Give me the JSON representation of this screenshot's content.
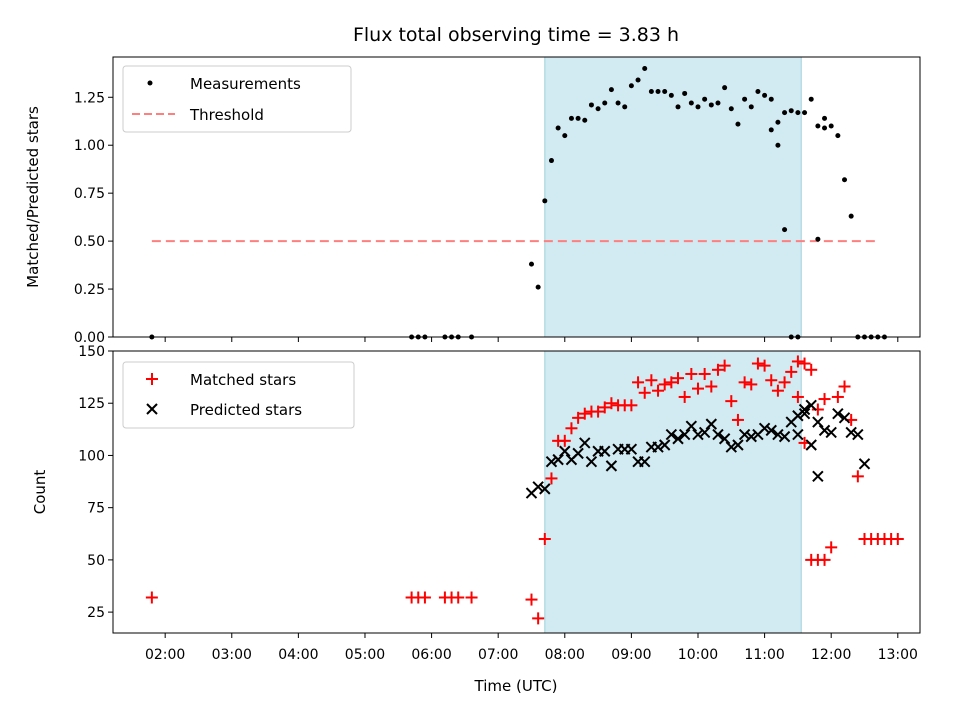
{
  "chart_data": [
    {
      "type": "scatter",
      "title": "Flux total observing time = 3.83 h",
      "xlabel": "",
      "ylabel": "Matched/Predicted stars",
      "ylim": [
        0,
        1.46
      ],
      "xlim": [
        "01:13",
        "13:20"
      ],
      "yticks": [
        "0.00",
        "0.25",
        "0.50",
        "0.75",
        "1.00",
        "1.25"
      ],
      "legend_position": "top-left",
      "shaded_interval": [
        "07:42",
        "11:33"
      ],
      "series": [
        {
          "name": "Measurements",
          "marker": "dot",
          "color": "#000000",
          "points": [
            [
              "01:48",
              0.0
            ],
            [
              "05:42",
              0.0
            ],
            [
              "05:48",
              0.0
            ],
            [
              "05:54",
              0.0
            ],
            [
              "06:12",
              0.0
            ],
            [
              "06:18",
              0.0
            ],
            [
              "06:24",
              0.0
            ],
            [
              "06:36",
              0.0
            ],
            [
              "07:30",
              0.38
            ],
            [
              "07:36",
              0.26
            ],
            [
              "07:42",
              0.71
            ],
            [
              "07:48",
              0.92
            ],
            [
              "07:54",
              1.09
            ],
            [
              "08:00",
              1.05
            ],
            [
              "08:06",
              1.14
            ],
            [
              "08:12",
              1.14
            ],
            [
              "08:18",
              1.13
            ],
            [
              "08:24",
              1.21
            ],
            [
              "08:30",
              1.19
            ],
            [
              "08:36",
              1.22
            ],
            [
              "08:42",
              1.29
            ],
            [
              "08:48",
              1.22
            ],
            [
              "08:54",
              1.2
            ],
            [
              "09:00",
              1.31
            ],
            [
              "09:06",
              1.34
            ],
            [
              "09:12",
              1.4
            ],
            [
              "09:18",
              1.28
            ],
            [
              "09:24",
              1.28
            ],
            [
              "09:30",
              1.28
            ],
            [
              "09:36",
              1.26
            ],
            [
              "09:42",
              1.2
            ],
            [
              "09:48",
              1.27
            ],
            [
              "09:54",
              1.22
            ],
            [
              "10:00",
              1.2
            ],
            [
              "10:06",
              1.24
            ],
            [
              "10:12",
              1.21
            ],
            [
              "10:18",
              1.22
            ],
            [
              "10:24",
              1.3
            ],
            [
              "10:30",
              1.19
            ],
            [
              "10:36",
              1.11
            ],
            [
              "10:42",
              1.24
            ],
            [
              "10:48",
              1.2
            ],
            [
              "10:54",
              1.28
            ],
            [
              "11:00",
              1.26
            ],
            [
              "11:06",
              1.24
            ],
            [
              "11:12",
              1.12
            ],
            [
              "11:18",
              1.17
            ],
            [
              "11:24",
              1.18
            ],
            [
              "11:30",
              1.17
            ],
            [
              "11:36",
              1.17
            ],
            [
              "11:42",
              1.24
            ],
            [
              "11:48",
              1.1
            ],
            [
              "11:54",
              1.14
            ],
            [
              "11:06",
              1.08
            ],
            [
              "11:12",
              1.0
            ],
            [
              "11:18",
              0.56
            ],
            [
              "11:24",
              0.0
            ],
            [
              "11:30",
              0.0
            ],
            [
              "11:48",
              0.51
            ],
            [
              "11:54",
              1.09
            ],
            [
              "12:00",
              1.1
            ],
            [
              "12:06",
              1.05
            ],
            [
              "12:12",
              0.82
            ],
            [
              "12:18",
              0.63
            ],
            [
              "12:24",
              0.0
            ],
            [
              "12:30",
              0.0
            ],
            [
              "12:36",
              0.0
            ],
            [
              "12:42",
              0.0
            ],
            [
              "12:48",
              0.0
            ]
          ]
        },
        {
          "name": "Threshold",
          "marker": "dashed-line",
          "color": "#ff7f7f",
          "points": [
            [
              "01:48",
              0.5
            ],
            [
              "12:42",
              0.5
            ]
          ]
        }
      ]
    },
    {
      "type": "scatter",
      "title": "",
      "xlabel": "Time (UTC)",
      "ylabel": "Count",
      "ylim": [
        15,
        150
      ],
      "xlim": [
        "01:13",
        "13:20"
      ],
      "yticks": [
        "25",
        "50",
        "75",
        "100",
        "125",
        "150"
      ],
      "xticks": [
        "02:00",
        "03:00",
        "04:00",
        "05:00",
        "06:00",
        "07:00",
        "08:00",
        "09:00",
        "10:00",
        "11:00",
        "12:00",
        "13:00"
      ],
      "legend_position": "top-left",
      "shaded_interval": [
        "07:42",
        "11:33"
      ],
      "series": [
        {
          "name": "Matched stars",
          "marker": "plus",
          "color": "#ff0000",
          "points": [
            [
              "01:48",
              32
            ],
            [
              "05:42",
              32
            ],
            [
              "05:48",
              32
            ],
            [
              "05:54",
              32
            ],
            [
              "06:12",
              32
            ],
            [
              "06:18",
              32
            ],
            [
              "06:24",
              32
            ],
            [
              "06:36",
              32
            ],
            [
              "07:30",
              31
            ],
            [
              "07:36",
              22
            ],
            [
              "07:42",
              60
            ],
            [
              "07:48",
              89
            ],
            [
              "07:54",
              107
            ],
            [
              "08:00",
              107
            ],
            [
              "08:06",
              113
            ],
            [
              "08:12",
              118
            ],
            [
              "08:18",
              120
            ],
            [
              "08:24",
              121
            ],
            [
              "08:30",
              121
            ],
            [
              "08:36",
              123
            ],
            [
              "08:42",
              125
            ],
            [
              "08:48",
              124
            ],
            [
              "08:54",
              124
            ],
            [
              "09:00",
              124
            ],
            [
              "09:06",
              135
            ],
            [
              "09:12",
              130
            ],
            [
              "09:18",
              136
            ],
            [
              "09:24",
              131
            ],
            [
              "09:30",
              134
            ],
            [
              "09:36",
              135
            ],
            [
              "09:42",
              137
            ],
            [
              "09:48",
              128
            ],
            [
              "09:54",
              139
            ],
            [
              "10:00",
              132
            ],
            [
              "10:06",
              139
            ],
            [
              "10:12",
              133
            ],
            [
              "10:18",
              141
            ],
            [
              "10:24",
              143
            ],
            [
              "10:30",
              126
            ],
            [
              "10:36",
              117
            ],
            [
              "10:42",
              135
            ],
            [
              "10:48",
              134
            ],
            [
              "10:54",
              144
            ],
            [
              "11:00",
              143
            ],
            [
              "11:06",
              136
            ],
            [
              "11:12",
              131
            ],
            [
              "11:18",
              135
            ],
            [
              "11:24",
              140
            ],
            [
              "11:30",
              145
            ],
            [
              "11:36",
              144
            ],
            [
              "11:42",
              141
            ],
            [
              "11:48",
              122
            ],
            [
              "11:54",
              127
            ],
            [
              "11:30",
              128
            ],
            [
              "11:36",
              106
            ],
            [
              "11:42",
              50
            ],
            [
              "11:48",
              50
            ],
            [
              "11:54",
              50
            ],
            [
              "12:00",
              56
            ],
            [
              "12:06",
              128
            ],
            [
              "12:12",
              133
            ],
            [
              "12:18",
              117
            ],
            [
              "12:24",
              90
            ],
            [
              "12:30",
              60
            ],
            [
              "12:36",
              60
            ],
            [
              "12:42",
              60
            ],
            [
              "12:48",
              60
            ],
            [
              "12:54",
              60
            ],
            [
              "13:00",
              60
            ]
          ]
        },
        {
          "name": "Predicted stars",
          "marker": "x",
          "color": "#000000",
          "points": [
            [
              "07:30",
              82
            ],
            [
              "07:36",
              85
            ],
            [
              "07:42",
              84
            ],
            [
              "07:48",
              97
            ],
            [
              "07:54",
              98
            ],
            [
              "08:00",
              102
            ],
            [
              "08:06",
              98
            ],
            [
              "08:12",
              101
            ],
            [
              "08:18",
              106
            ],
            [
              "08:24",
              97
            ],
            [
              "08:30",
              102
            ],
            [
              "08:36",
              102
            ],
            [
              "08:42",
              95
            ],
            [
              "08:48",
              103
            ],
            [
              "08:54",
              103
            ],
            [
              "09:00",
              103
            ],
            [
              "09:06",
              97
            ],
            [
              "09:12",
              97
            ],
            [
              "09:18",
              104
            ],
            [
              "09:24",
              104
            ],
            [
              "09:30",
              105
            ],
            [
              "09:36",
              110
            ],
            [
              "09:42",
              108
            ],
            [
              "09:48",
              110
            ],
            [
              "09:54",
              114
            ],
            [
              "10:00",
              110
            ],
            [
              "10:06",
              111
            ],
            [
              "10:12",
              115
            ],
            [
              "10:18",
              110
            ],
            [
              "10:24",
              108
            ],
            [
              "10:30",
              104
            ],
            [
              "10:36",
              105
            ],
            [
              "10:42",
              110
            ],
            [
              "10:48",
              109
            ],
            [
              "10:54",
              110
            ],
            [
              "11:00",
              113
            ],
            [
              "11:06",
              112
            ],
            [
              "11:12",
              110
            ],
            [
              "11:18",
              109
            ],
            [
              "11:24",
              116
            ],
            [
              "11:30",
              119
            ],
            [
              "11:36",
              122
            ],
            [
              "11:42",
              124
            ],
            [
              "11:48",
              116
            ],
            [
              "11:54",
              112
            ],
            [
              "11:30",
              110
            ],
            [
              "11:36",
              120
            ],
            [
              "11:42",
              105
            ],
            [
              "11:48",
              90
            ],
            [
              "12:00",
              111
            ],
            [
              "12:06",
              120
            ],
            [
              "12:12",
              118
            ],
            [
              "12:18",
              111
            ],
            [
              "12:24",
              110
            ],
            [
              "12:30",
              96
            ]
          ]
        }
      ]
    }
  ]
}
